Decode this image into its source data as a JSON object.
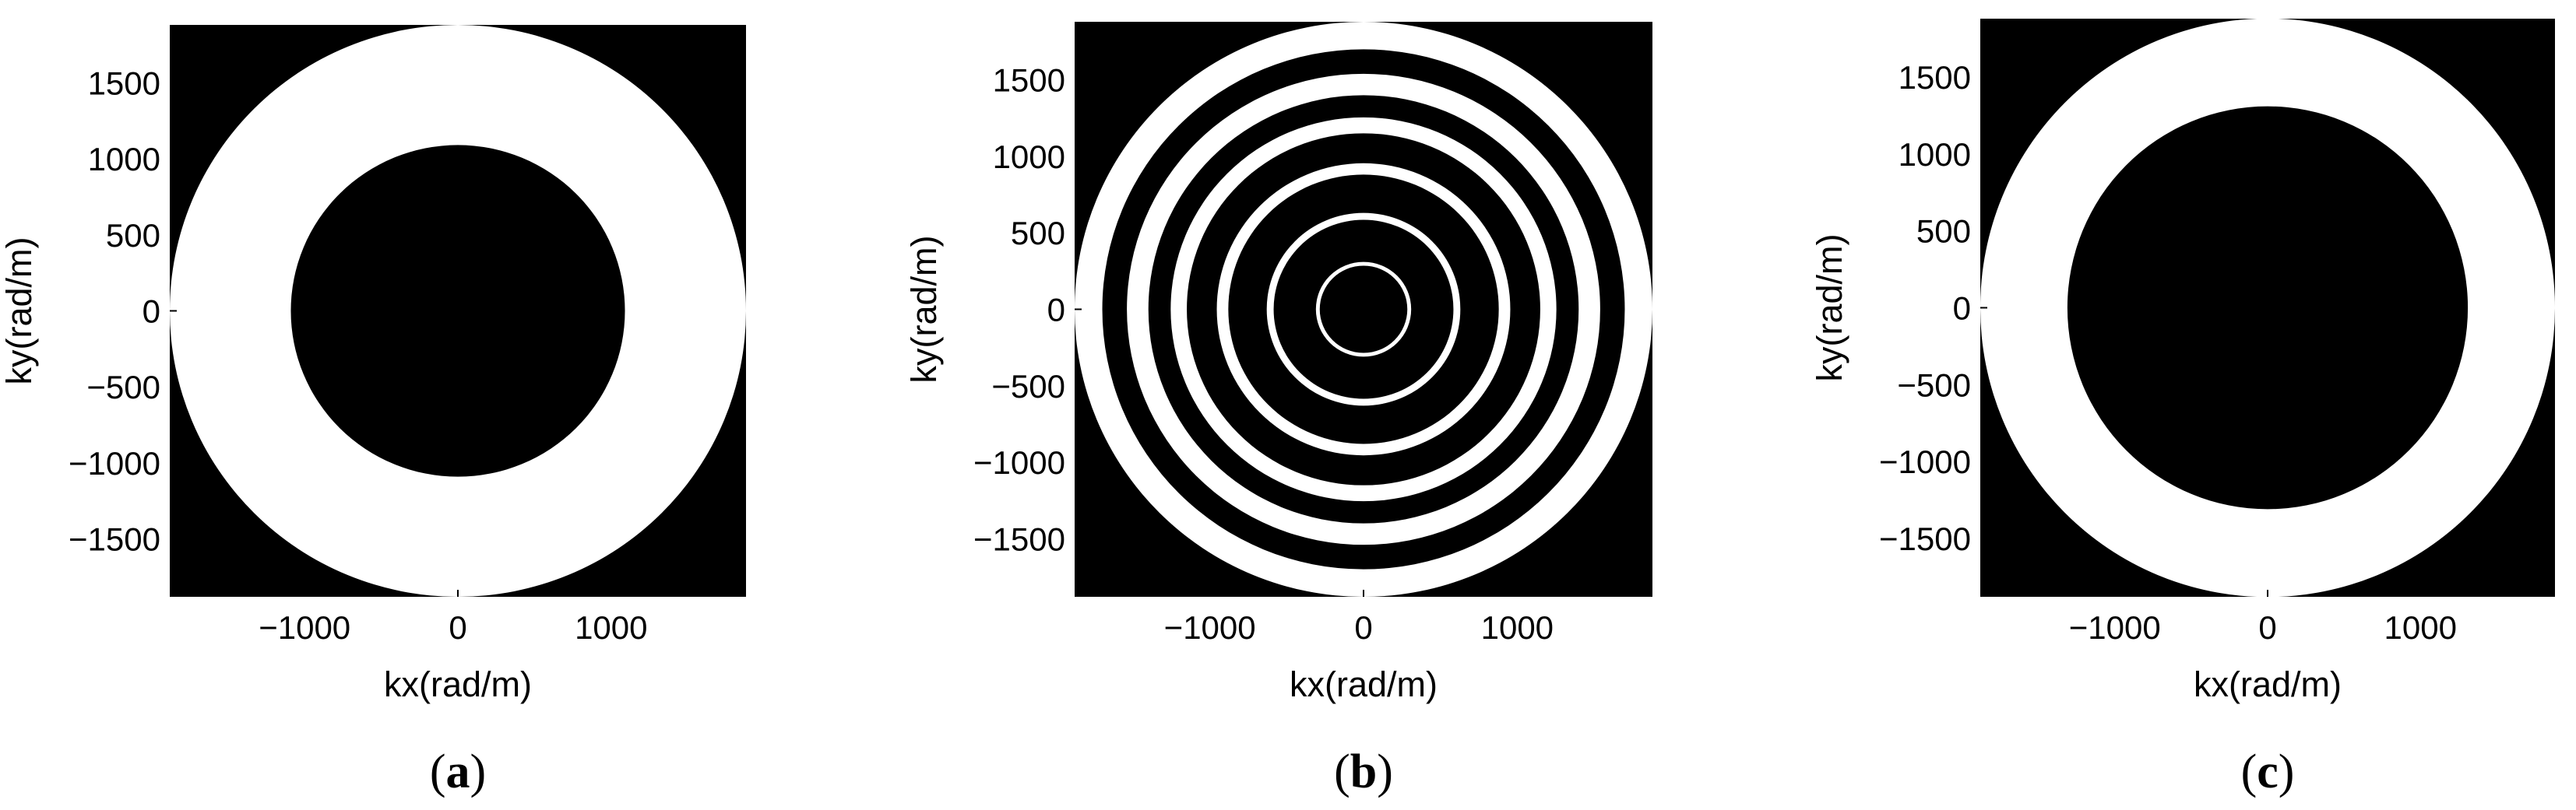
{
  "figure": {
    "panel_labels": [
      {
        "open": "(",
        "letter": "a",
        "close": ")"
      },
      {
        "open": "(",
        "letter": "b",
        "close": ")"
      },
      {
        "open": "(",
        "letter": "c",
        "close": ")"
      }
    ]
  },
  "chart_data": [
    {
      "type": "heatmap",
      "panel": "a",
      "title": "",
      "xlabel": "kx(rad/m)",
      "ylabel": "ky(rad/m)",
      "xlim": [
        -1880,
        1880
      ],
      "ylim": [
        -1880,
        1880
      ],
      "xticks": [
        -1000,
        0,
        1000
      ],
      "yticks": [
        1500,
        1000,
        500,
        0,
        -500,
        -1000,
        -1500
      ],
      "background_color": "#000000",
      "ring_color": "#ffffff",
      "white_rings": [
        {
          "inner": 1090,
          "outer": 1880
        }
      ],
      "grid": false,
      "legend": "none"
    },
    {
      "type": "heatmap",
      "panel": "b",
      "title": "",
      "xlabel": "kx(rad/m)",
      "ylabel": "ky(rad/m)",
      "xlim": [
        -1880,
        1880
      ],
      "ylim": [
        -1880,
        1880
      ],
      "xticks": [
        -1000,
        0,
        1000
      ],
      "yticks": [
        1500,
        1000,
        500,
        0,
        -500,
        -1000,
        -1500
      ],
      "background_color": "#000000",
      "ring_color": "#ffffff",
      "white_rings": [
        {
          "inner": 285,
          "outer": 310
        },
        {
          "inner": 585,
          "outer": 630
        },
        {
          "inner": 880,
          "outer": 955
        },
        {
          "inner": 1150,
          "outer": 1255
        },
        {
          "inner": 1400,
          "outer": 1540
        },
        {
          "inner": 1700,
          "outer": 1880
        }
      ],
      "grid": false,
      "legend": "none"
    },
    {
      "type": "heatmap",
      "panel": "c",
      "title": "",
      "xlabel": "kx(rad/m)",
      "ylabel": "ky(rad/m)",
      "xlim": [
        -1880,
        1880
      ],
      "ylim": [
        -1880,
        1880
      ],
      "xticks": [
        -1000,
        0,
        1000
      ],
      "yticks": [
        1500,
        1000,
        500,
        0,
        -500,
        -1000,
        -1500
      ],
      "background_color": "#000000",
      "ring_color": "#ffffff",
      "white_rings": [
        {
          "inner": 1310,
          "outer": 1880
        }
      ],
      "grid": false,
      "legend": "none"
    }
  ]
}
